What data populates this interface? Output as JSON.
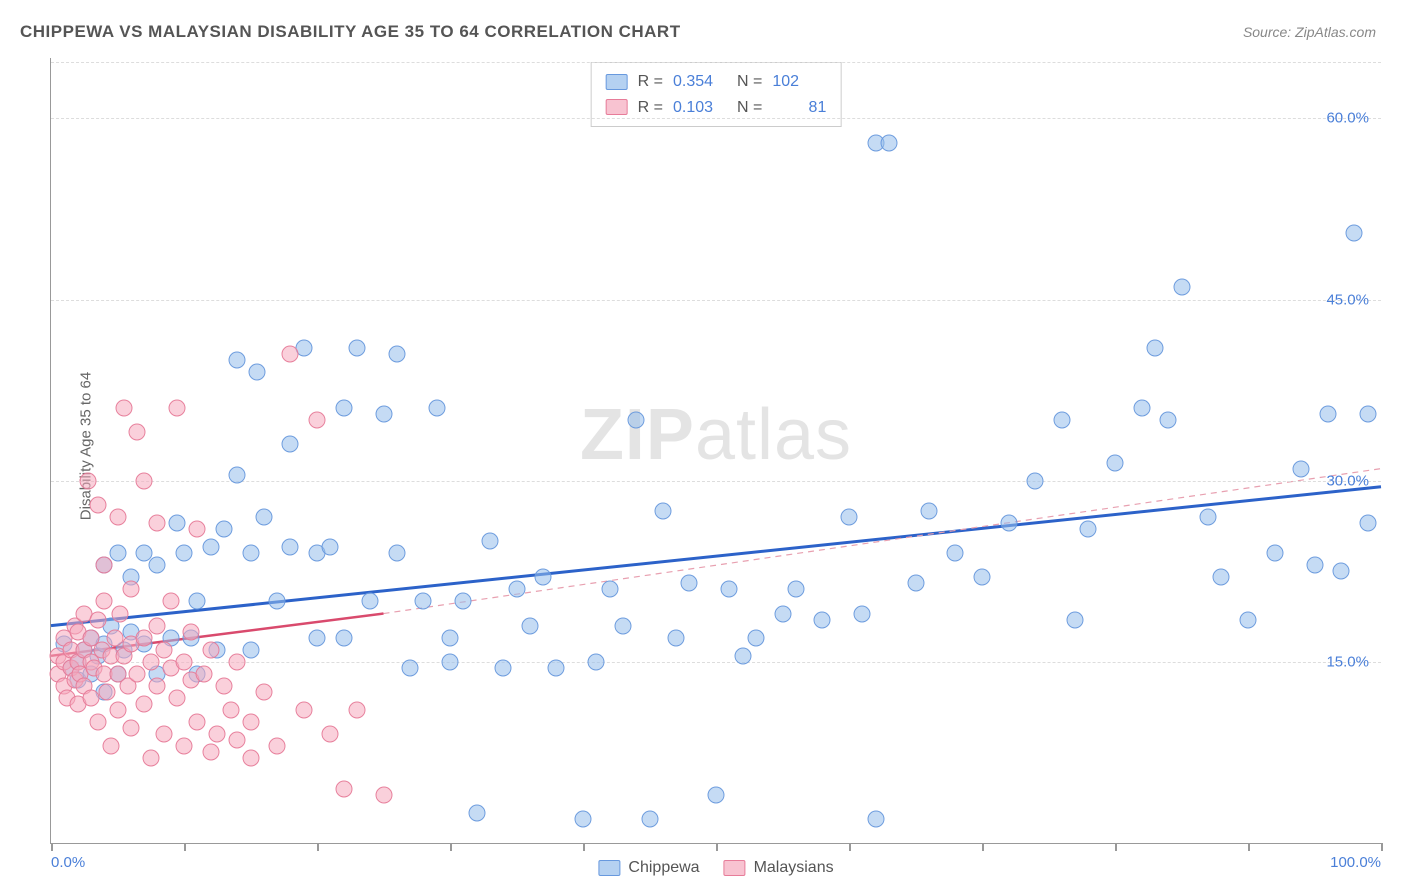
{
  "title": "CHIPPEWA VS MALAYSIAN DISABILITY AGE 35 TO 64 CORRELATION CHART",
  "source": "Source: ZipAtlas.com",
  "ylabel": "Disability Age 35 to 64",
  "watermark_bold": "ZIP",
  "watermark_light": "atlas",
  "chart": {
    "type": "scatter",
    "background_color": "#ffffff",
    "grid_color": "#dddddd",
    "axis_color": "#999999",
    "tick_label_color": "#4a7fd8",
    "label_fontsize": 15,
    "title_fontsize": 17,
    "xlim": [
      0,
      100
    ],
    "ylim": [
      0,
      65
    ],
    "xtick_positions": [
      0,
      10,
      20,
      30,
      40,
      50,
      60,
      70,
      80,
      90,
      100
    ],
    "xtick_labels": {
      "0": "0.0%",
      "100": "100.0%"
    },
    "ytick_positions": [
      15,
      30,
      45,
      60
    ],
    "ytick_labels": {
      "15": "15.0%",
      "30": "30.0%",
      "45": "45.0%",
      "60": "60.0%"
    },
    "marker_size": 17,
    "series": [
      {
        "name": "Chippewa",
        "color_fill": "rgba(150,190,235,0.55)",
        "color_stroke": "rgba(100,150,220,0.9)",
        "R": "0.354",
        "N": "102",
        "trend": {
          "x1": 0,
          "y1": 18.0,
          "x2": 100,
          "y2": 29.5,
          "color": "#2c62c9",
          "width": 3,
          "dash": "none"
        },
        "points": [
          [
            1,
            16.5
          ],
          [
            1.5,
            14.5
          ],
          [
            2,
            15
          ],
          [
            2,
            13.5
          ],
          [
            2.5,
            16
          ],
          [
            3,
            14
          ],
          [
            3,
            17
          ],
          [
            3.5,
            15.5
          ],
          [
            4,
            16.5
          ],
          [
            4,
            12.5
          ],
          [
            4,
            23
          ],
          [
            4.5,
            18
          ],
          [
            5,
            14
          ],
          [
            5,
            24
          ],
          [
            5.5,
            16
          ],
          [
            6,
            17.5
          ],
          [
            6,
            22
          ],
          [
            7,
            24
          ],
          [
            7,
            16.5
          ],
          [
            8,
            14
          ],
          [
            8,
            23
          ],
          [
            9,
            17
          ],
          [
            9.5,
            26.5
          ],
          [
            10,
            24
          ],
          [
            10.5,
            17
          ],
          [
            11,
            14
          ],
          [
            11,
            20
          ],
          [
            12,
            24.5
          ],
          [
            12.5,
            16
          ],
          [
            13,
            26
          ],
          [
            14,
            30.5
          ],
          [
            14,
            40
          ],
          [
            15,
            16
          ],
          [
            15,
            24
          ],
          [
            15.5,
            39
          ],
          [
            16,
            27
          ],
          [
            17,
            20
          ],
          [
            18,
            24.5
          ],
          [
            18,
            33
          ],
          [
            19,
            41
          ],
          [
            20,
            17
          ],
          [
            20,
            24
          ],
          [
            21,
            24.5
          ],
          [
            22,
            36
          ],
          [
            22,
            17
          ],
          [
            23,
            41
          ],
          [
            24,
            20
          ],
          [
            25,
            35.5
          ],
          [
            26,
            24
          ],
          [
            26,
            40.5
          ],
          [
            27,
            14.5
          ],
          [
            28,
            20
          ],
          [
            29,
            36
          ],
          [
            30,
            17
          ],
          [
            30,
            15
          ],
          [
            31,
            20
          ],
          [
            32,
            2.5
          ],
          [
            33,
            25
          ],
          [
            34,
            14.5
          ],
          [
            35,
            21
          ],
          [
            36,
            18
          ],
          [
            37,
            22
          ],
          [
            38,
            14.5
          ],
          [
            40,
            2
          ],
          [
            41,
            15
          ],
          [
            42,
            21
          ],
          [
            43,
            18
          ],
          [
            44,
            35
          ],
          [
            45,
            2
          ],
          [
            46,
            27.5
          ],
          [
            47,
            17
          ],
          [
            48,
            21.5
          ],
          [
            50,
            4
          ],
          [
            51,
            21
          ],
          [
            52,
            15.5
          ],
          [
            53,
            17
          ],
          [
            55,
            19
          ],
          [
            56,
            21
          ],
          [
            58,
            18.5
          ],
          [
            60,
            27
          ],
          [
            61,
            19
          ],
          [
            62,
            2
          ],
          [
            62,
            58
          ],
          [
            63,
            58
          ],
          [
            65,
            21.5
          ],
          [
            66,
            27.5
          ],
          [
            68,
            24
          ],
          [
            70,
            22
          ],
          [
            72,
            26.5
          ],
          [
            74,
            30
          ],
          [
            76,
            35
          ],
          [
            77,
            18.5
          ],
          [
            78,
            26
          ],
          [
            80,
            31.5
          ],
          [
            82,
            36
          ],
          [
            83,
            41
          ],
          [
            84,
            35
          ],
          [
            85,
            46
          ],
          [
            87,
            27
          ],
          [
            88,
            22
          ],
          [
            90,
            18.5
          ],
          [
            92,
            24
          ],
          [
            94,
            31
          ],
          [
            95,
            23
          ],
          [
            96,
            35.5
          ],
          [
            97,
            22.5
          ],
          [
            98,
            50.5
          ],
          [
            99,
            26.5
          ],
          [
            99,
            35.5
          ]
        ]
      },
      {
        "name": "Malaysians",
        "color_fill": "rgba(245,170,190,0.55)",
        "color_stroke": "rgba(230,120,150,0.9)",
        "R": "0.103",
        "N": "81",
        "trend": {
          "x1": 0,
          "y1": 15.5,
          "x2": 25,
          "y2": 19.0,
          "color": "#d94a6d",
          "width": 2.5,
          "dash": "none"
        },
        "trend_dashed": {
          "x1": 25,
          "y1": 19.0,
          "x2": 100,
          "y2": 31.0,
          "color": "#e8a0b0",
          "width": 1.2,
          "dash": "6,5"
        },
        "points": [
          [
            0.5,
            14
          ],
          [
            0.5,
            15.5
          ],
          [
            1,
            13
          ],
          [
            1,
            15
          ],
          [
            1,
            17
          ],
          [
            1.2,
            12
          ],
          [
            1.5,
            14.5
          ],
          [
            1.5,
            16
          ],
          [
            1.8,
            18
          ],
          [
            1.8,
            13.5
          ],
          [
            2,
            15
          ],
          [
            2,
            17.5
          ],
          [
            2,
            11.5
          ],
          [
            2.2,
            14
          ],
          [
            2.5,
            16
          ],
          [
            2.5,
            19
          ],
          [
            2.5,
            13
          ],
          [
            2.8,
            30
          ],
          [
            3,
            15
          ],
          [
            3,
            17
          ],
          [
            3,
            12
          ],
          [
            3.2,
            14.5
          ],
          [
            3.5,
            18.5
          ],
          [
            3.5,
            10
          ],
          [
            3.5,
            28
          ],
          [
            3.8,
            16
          ],
          [
            4,
            14
          ],
          [
            4,
            20
          ],
          [
            4,
            23
          ],
          [
            4.2,
            12.5
          ],
          [
            4.5,
            15.5
          ],
          [
            4.5,
            8
          ],
          [
            4.8,
            17
          ],
          [
            5,
            14
          ],
          [
            5,
            27
          ],
          [
            5,
            11
          ],
          [
            5.2,
            19
          ],
          [
            5.5,
            15.5
          ],
          [
            5.5,
            36
          ],
          [
            5.8,
            13
          ],
          [
            6,
            16.5
          ],
          [
            6,
            9.5
          ],
          [
            6,
            21
          ],
          [
            6.5,
            14
          ],
          [
            6.5,
            34
          ],
          [
            7,
            17
          ],
          [
            7,
            11.5
          ],
          [
            7,
            30
          ],
          [
            7.5,
            15
          ],
          [
            7.5,
            7
          ],
          [
            8,
            18
          ],
          [
            8,
            13
          ],
          [
            8,
            26.5
          ],
          [
            8.5,
            16
          ],
          [
            8.5,
            9
          ],
          [
            9,
            14.5
          ],
          [
            9,
            20
          ],
          [
            9.5,
            12
          ],
          [
            9.5,
            36
          ],
          [
            10,
            15
          ],
          [
            10,
            8
          ],
          [
            10.5,
            17.5
          ],
          [
            10.5,
            13.5
          ],
          [
            11,
            10
          ],
          [
            11,
            26
          ],
          [
            11.5,
            14
          ],
          [
            12,
            7.5
          ],
          [
            12,
            16
          ],
          [
            12.5,
            9
          ],
          [
            13,
            13
          ],
          [
            13.5,
            11
          ],
          [
            14,
            8.5
          ],
          [
            14,
            15
          ],
          [
            15,
            10
          ],
          [
            15,
            7
          ],
          [
            16,
            12.5
          ],
          [
            17,
            8
          ],
          [
            18,
            40.5
          ],
          [
            19,
            11
          ],
          [
            20,
            35
          ],
          [
            21,
            9
          ],
          [
            22,
            4.5
          ],
          [
            23,
            11
          ],
          [
            25,
            4
          ]
        ]
      }
    ]
  },
  "legend_bottom": [
    {
      "swatch": "blue",
      "label": "Chippewa"
    },
    {
      "swatch": "pink",
      "label": "Malaysians"
    }
  ]
}
